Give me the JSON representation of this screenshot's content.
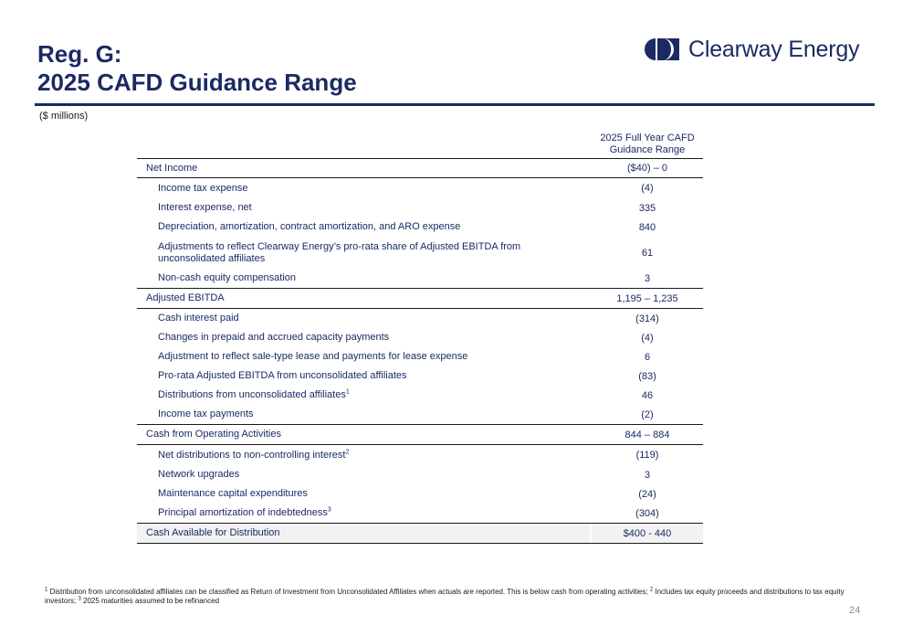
{
  "title": {
    "line1": "Reg. G:",
    "line2": "2025 CAFD Guidance Range"
  },
  "logo": {
    "text": "Clearway Energy",
    "icon": "clearway-logo-icon",
    "color": "#1b2a63"
  },
  "units": "($ millions)",
  "column_header": {
    "line1": "2025 Full Year CAFD",
    "line2": "Guidance Range"
  },
  "rows": [
    {
      "label": "Net Income",
      "value": "($40) – 0"
    },
    {
      "label": "Income tax expense",
      "value": "(4)"
    },
    {
      "label": "Interest expense, net",
      "value": "335"
    },
    {
      "label": "Depreciation, amortization, contract amortization, and ARO expense",
      "value": "840"
    },
    {
      "label_line1": "Adjustments to reflect Clearway Energy’s pro-rata share of Adjusted EBITDA from",
      "label_line2": "unconsolidated affiliates",
      "value": "61"
    },
    {
      "label": "Non-cash equity compensation",
      "value": "3"
    },
    {
      "label": "Adjusted EBITDA",
      "value": "1,195 – 1,235"
    },
    {
      "label": "Cash interest paid",
      "value": "(314)"
    },
    {
      "label": "Changes in prepaid and accrued capacity payments",
      "value": "(4)"
    },
    {
      "label": "Adjustment to reflect sale-type lease and payments for lease expense",
      "value": "6"
    },
    {
      "label": "Pro-rata Adjusted EBITDA from unconsolidated affiliates",
      "value": "(83)"
    },
    {
      "label": "Distributions from unconsolidated affiliates",
      "sup": "1",
      "value": "46"
    },
    {
      "label": "Income tax payments",
      "value": "(2)"
    },
    {
      "label": "Cash from Operating Activities",
      "value": "844 – 884"
    },
    {
      "label": "Net distributions to non-controlling interest",
      "sup": "2",
      "value": "(119)"
    },
    {
      "label": "Network upgrades",
      "value": "3"
    },
    {
      "label": "Maintenance capital expenditures",
      "value": "(24)"
    },
    {
      "label": "Principal amortization of indebtedness",
      "sup": "3",
      "value": "(304)"
    },
    {
      "label": "Cash Available for Distribution",
      "value": "$400 - 440"
    }
  ],
  "footnote": {
    "sup1": "1",
    "text1": " Distribution from unconsolidated affiliates can be classified as Return of Investment from Unconsolidated Affiliates when actuals are reported. This is below cash from operating activities; ",
    "sup2": "2",
    "text2": " Includes tax equity proceeds and distributions to tax equity investors; ",
    "sup3": "3",
    "text3": " 2025 maturities assumed to be refinanced"
  },
  "page_number": "24"
}
